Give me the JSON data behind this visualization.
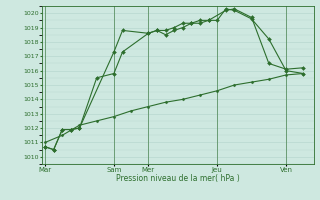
{
  "bg_color": "#cee8e0",
  "grid_color": "#b8d8d0",
  "line_color": "#2d6e2d",
  "ylim": [
    1009.5,
    1020.5
  ],
  "yticks": [
    1010,
    1011,
    1012,
    1013,
    1014,
    1015,
    1016,
    1017,
    1018,
    1019,
    1020
  ],
  "xlabel": "Pression niveau de la mer( hPa )",
  "xtick_labels": [
    "Mar",
    "",
    "Sam",
    "Mer",
    "",
    "Jeu",
    "",
    "Ven"
  ],
  "xtick_positions": [
    0,
    1,
    2,
    3,
    4,
    5,
    6,
    7
  ],
  "vline_positions": [
    0,
    2,
    3,
    5,
    7
  ],
  "vline_labels": [
    "Mar",
    "Sam",
    "Mer",
    "Jeu",
    "Ven"
  ],
  "line1_x": [
    0,
    0.25,
    0.5,
    0.75,
    1.0,
    2.0,
    2.25,
    3.0,
    3.25,
    3.5,
    3.75,
    4.0,
    4.25,
    4.5,
    4.75,
    5.25,
    5.5,
    6.0,
    6.5,
    7.0,
    7.5
  ],
  "line1_y": [
    1010.7,
    1010.5,
    1011.9,
    1011.9,
    1012.0,
    1017.3,
    1018.8,
    1018.6,
    1018.8,
    1018.8,
    1019.0,
    1019.3,
    1019.3,
    1019.5,
    1019.5,
    1020.2,
    1020.3,
    1019.7,
    1016.5,
    1016.1,
    1016.2
  ],
  "line2_x": [
    0,
    0.25,
    0.5,
    0.75,
    1.0,
    1.5,
    2.0,
    2.25,
    3.0,
    3.25,
    3.5,
    3.75,
    4.0,
    4.25,
    4.5,
    4.75,
    5.0,
    5.25,
    5.5,
    6.0,
    6.5,
    7.0,
    7.5
  ],
  "line2_y": [
    1010.7,
    1010.5,
    1011.9,
    1011.9,
    1012.0,
    1015.5,
    1015.8,
    1017.3,
    1018.6,
    1018.8,
    1018.5,
    1018.8,
    1019.0,
    1019.3,
    1019.3,
    1019.5,
    1019.5,
    1020.3,
    1020.2,
    1019.6,
    1018.2,
    1016.0,
    1015.8
  ],
  "line3_x": [
    0,
    0.5,
    1.0,
    1.5,
    2.0,
    2.5,
    3.0,
    3.5,
    4.0,
    4.5,
    5.0,
    5.5,
    6.0,
    6.5,
    7.0,
    7.5
  ],
  "line3_y": [
    1011.0,
    1011.5,
    1012.2,
    1012.5,
    1012.8,
    1013.2,
    1013.5,
    1013.8,
    1014.0,
    1014.3,
    1014.6,
    1015.0,
    1015.2,
    1015.4,
    1015.7,
    1015.8
  ]
}
